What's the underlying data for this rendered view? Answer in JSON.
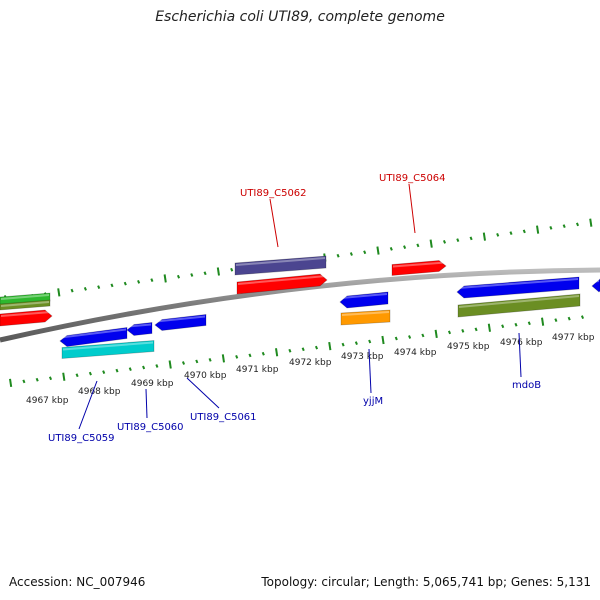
{
  "title": "Escherichia coli UTI89, complete genome",
  "footer": {
    "accession": "Accession: NC_007946",
    "summary": "Topology: circular; Length: 5,065,741 bp; Genes: 5,131"
  },
  "colors": {
    "backbone": "#8a8a8a",
    "ticks": "#1f8a1f",
    "forward_label": "#cc0000",
    "reverse_label": "#0000aa"
  },
  "scale_labels": [
    "4967 kbp",
    "4968 kbp",
    "4969 kbp",
    "4970 kbp",
    "4971 kbp",
    "4972 kbp",
    "4973 kbp",
    "4974 kbp",
    "4975 kbp",
    "4976 kbp",
    "4977 kbp"
  ],
  "gene_labels": [
    {
      "text": "UTI89_C5062",
      "strand": "forward"
    },
    {
      "text": "UTI89_C5064",
      "strand": "forward"
    },
    {
      "text": "UTI89_C5059",
      "strand": "reverse"
    },
    {
      "text": "UTI89_C5060",
      "strand": "reverse"
    },
    {
      "text": "UTI89_C5061",
      "strand": "reverse"
    },
    {
      "text": "yjjM",
      "strand": "reverse"
    },
    {
      "text": "mdoB",
      "strand": "reverse"
    }
  ],
  "gene_colors": {
    "red": "#ff0000",
    "blue": "#0000ee",
    "green": "#2eb82e",
    "cyan": "#00cccc",
    "purple": "#4b4590",
    "orange": "#ff9900",
    "olive": "#6b8e23"
  }
}
